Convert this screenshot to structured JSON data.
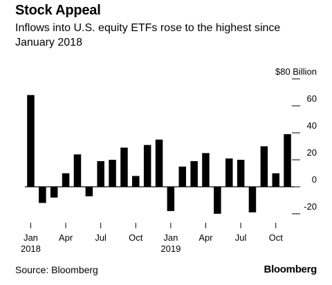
{
  "header": {
    "title": "Stock Appeal",
    "subtitle": "Inflows into U.S. equity ETFs rose to the highest since January 2018"
  },
  "footer": {
    "source": "Source: Bloomberg",
    "brand": "Bloomberg"
  },
  "chart_data": {
    "type": "bar",
    "title": "Stock Appeal",
    "subtitle": "Inflows into U.S. equity ETFs rose to the highest since January 2018",
    "xlabel": "",
    "ylabel": "",
    "y_unit_label": "$80 Billion",
    "ylim": [
      -20,
      80
    ],
    "yticks": [
      60,
      40,
      20,
      0,
      -20
    ],
    "grid": false,
    "legend": "none",
    "categories": [
      "Jan 2018",
      "Feb 2018",
      "Mar 2018",
      "Apr 2018",
      "May 2018",
      "Jun 2018",
      "Jul 2018",
      "Aug 2018",
      "Sep 2018",
      "Oct 2018",
      "Nov 2018",
      "Dec 2018",
      "Jan 2019",
      "Feb 2019",
      "Mar 2019",
      "Apr 2019",
      "May 2019",
      "Jun 2019",
      "Jul 2019",
      "Aug 2019",
      "Sep 2019",
      "Oct 2019",
      "Nov 2019"
    ],
    "values": [
      68,
      -12,
      -8,
      10,
      24,
      -7,
      19,
      20,
      29,
      8,
      31,
      35,
      -18,
      15,
      19,
      25,
      -20,
      21,
      20,
      -19,
      30,
      10,
      39
    ],
    "x_tick_labels": [
      {
        "index": 0,
        "line1": "Jan",
        "line2": "2018"
      },
      {
        "index": 3,
        "line1": "Apr",
        "line2": ""
      },
      {
        "index": 6,
        "line1": "Jul",
        "line2": ""
      },
      {
        "index": 9,
        "line1": "Oct",
        "line2": ""
      },
      {
        "index": 12,
        "line1": "Jan",
        "line2": "2019"
      },
      {
        "index": 15,
        "line1": "Apr",
        "line2": ""
      },
      {
        "index": 18,
        "line1": "Jul",
        "line2": ""
      },
      {
        "index": 21,
        "line1": "Oct",
        "line2": ""
      }
    ],
    "colors": {
      "bar": "#000000",
      "axis": "#000000"
    }
  }
}
